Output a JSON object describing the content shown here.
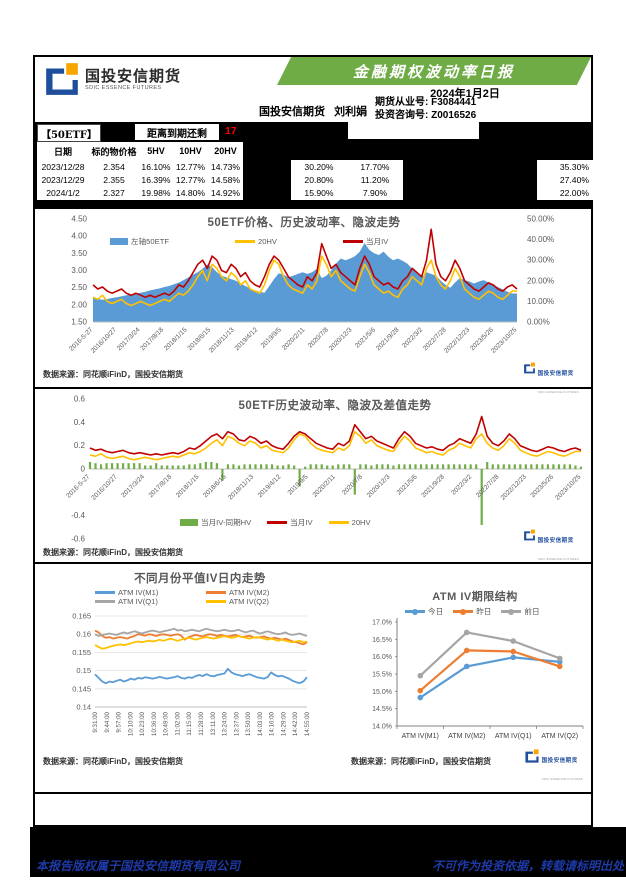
{
  "brand": {
    "name": "国投安信期货",
    "sub": "SDIC ESSENCE FUTURES"
  },
  "header": {
    "banner_title": "金融期权波动率日报",
    "date": "2024年1月2日",
    "company": "国投安信期货",
    "analyst": "刘利娟",
    "license1": "期货从业号: F3084441",
    "license2": "投资咨询号: Z0016526"
  },
  "info_bar": {
    "instrument": "【50ETF】",
    "expiry_label": "距离到期还剩",
    "days": "17"
  },
  "table": {
    "headers": [
      "日期",
      "标的物价格",
      "5HV",
      "10HV",
      "20HV"
    ],
    "rows": [
      [
        "2023/12/28",
        "2.354",
        "16.10%",
        "12.77%",
        "14.73%"
      ],
      [
        "2023/12/29",
        "2.355",
        "16.39%",
        "12.77%",
        "14.58%"
      ],
      [
        "2024/1/2",
        "2.327",
        "19.98%",
        "14.80%",
        "14.92%"
      ]
    ],
    "mid_rows": [
      [
        "30.20%",
        "17.70%"
      ],
      [
        "20.80%",
        "11.20%"
      ],
      [
        "15.90%",
        "7.90%"
      ]
    ],
    "right_col": [
      "35.30%",
      "27.40%",
      "22.00%"
    ]
  },
  "sources": {
    "text": "数据来源：同花顺iFinD，国投安信期货"
  },
  "footer": {
    "left": "本报告版权属于国投安信期货有限公司",
    "right": "不可作为投资依据，转载请标明出处"
  },
  "chart_data": [
    {
      "type": "area",
      "title": "50ETF价格、历史波动率、隐波走势",
      "left_ticks": [
        "4.50",
        "4.00",
        "3.50",
        "3.00",
        "2.50",
        "2.00",
        "1.50"
      ],
      "right_ticks": [
        "50.00%",
        "40.00%",
        "30.00%",
        "20.00%",
        "10.00%",
        "0.00%"
      ],
      "left_range": [
        1.5,
        4.5
      ],
      "right_range": [
        0,
        50
      ],
      "x_labels": [
        "2016-5-27",
        "2016/10/27",
        "2017/3/24",
        "2017/8/18",
        "2018/1/15",
        "2018/6/15",
        "2018/11/13",
        "2019/4/12",
        "2019/9/5",
        "2020/2/11",
        "2020/7/8",
        "2020/12/3",
        "2021/5/6",
        "2021/9/28",
        "2022/3/2",
        "2022/7/28",
        "2022/12/23",
        "2023/5/26",
        "2023/10/25"
      ],
      "series": [
        {
          "name": "左轴50ETF",
          "axis": "left",
          "kind": "area",
          "color": "#5B9BD5",
          "values": [
            2.2,
            2.18,
            2.15,
            2.17,
            2.2,
            2.22,
            2.25,
            2.28,
            2.3,
            2.33,
            2.35,
            2.38,
            2.42,
            2.45,
            2.48,
            2.52,
            2.55,
            2.6,
            2.65,
            2.72,
            2.8,
            2.88,
            2.95,
            3.05,
            3.18,
            3.1,
            2.95,
            2.85,
            2.8,
            2.75,
            2.7,
            2.62,
            2.55,
            2.48,
            2.42,
            2.38,
            2.35,
            2.55,
            2.75,
            2.92,
            2.88,
            2.8,
            2.85,
            2.9,
            2.95,
            2.9,
            2.95,
            3.05,
            2.78,
            2.85,
            3.0,
            3.2,
            3.35,
            3.3,
            3.35,
            3.42,
            3.55,
            3.8,
            3.6,
            3.5,
            3.45,
            3.55,
            3.4,
            3.3,
            3.35,
            3.28,
            3.2,
            3.05,
            2.9,
            2.8,
            2.95,
            2.9,
            2.85,
            2.7,
            2.58,
            2.5,
            2.65,
            2.78,
            2.72,
            2.68,
            2.62,
            2.68,
            2.72,
            2.65,
            2.58,
            2.52,
            2.45,
            2.38,
            2.33,
            2.33
          ]
        },
        {
          "name": "20HV",
          "axis": "right",
          "kind": "line",
          "color": "#FFC000",
          "values": [
            12,
            11,
            13,
            10,
            9,
            10,
            11,
            9,
            8,
            9,
            10,
            9,
            8,
            9,
            10,
            11,
            10,
            12,
            14,
            13,
            15,
            18,
            22,
            25,
            20,
            28,
            26,
            22,
            20,
            24,
            22,
            18,
            20,
            16,
            15,
            14,
            18,
            25,
            30,
            28,
            22,
            18,
            16,
            15,
            14,
            18,
            16,
            20,
            32,
            28,
            22,
            25,
            20,
            18,
            16,
            15,
            22,
            28,
            24,
            18,
            16,
            14,
            15,
            13,
            12,
            16,
            18,
            22,
            20,
            18,
            26,
            30,
            22,
            18,
            16,
            20,
            26,
            22,
            16,
            14,
            12,
            11,
            13,
            15,
            14,
            12,
            11,
            13,
            15,
            15
          ]
        },
        {
          "name": "当月IV",
          "axis": "right",
          "kind": "line",
          "color": "#C00000",
          "values": [
            18,
            16,
            17,
            15,
            14,
            15,
            16,
            14,
            13,
            14,
            13,
            12,
            13,
            12,
            13,
            14,
            13,
            15,
            18,
            17,
            20,
            24,
            28,
            30,
            26,
            32,
            30,
            25,
            24,
            28,
            26,
            22,
            24,
            20,
            18,
            17,
            22,
            28,
            32,
            30,
            26,
            22,
            20,
            18,
            17,
            22,
            20,
            24,
            38,
            32,
            26,
            28,
            24,
            22,
            20,
            18,
            26,
            32,
            28,
            22,
            20,
            18,
            19,
            17,
            16,
            20,
            22,
            26,
            24,
            22,
            30,
            45,
            28,
            22,
            20,
            24,
            30,
            26,
            20,
            18,
            16,
            15,
            17,
            19,
            18,
            16,
            15,
            17,
            18,
            16
          ]
        }
      ]
    },
    {
      "type": "bar",
      "title": "50ETF历史波动率、隐波及差值走势",
      "y_ticks_upper": [
        "0.6",
        "0.4",
        "0.2",
        "0"
      ],
      "y_ticks_lower": [
        "-0.4",
        "-0.6"
      ],
      "y_range": [
        -0.6,
        0.6
      ],
      "x_labels": [
        "2016-5-27",
        "2016/10/27",
        "2017/3/24",
        "2017/8/18",
        "2018/1/15",
        "2018/6/15",
        "2018/11/13",
        "2019/4/12",
        "2019/9/5",
        "2020/2/11",
        "2020/7/8",
        "2020/12/3",
        "2021/5/6",
        "2021/9/28",
        "2022/3/2",
        "2022/7/28",
        "2022/12/23",
        "2023/5/26",
        "2023/10/25"
      ],
      "series": [
        {
          "name": "当月IV-同期HV",
          "kind": "bar",
          "color": "#70AD47",
          "scale": 1,
          "values": [
            0.06,
            0.05,
            0.04,
            0.05,
            0.05,
            0.05,
            0.05,
            0.05,
            0.05,
            0.05,
            0.03,
            0.03,
            0.05,
            0.03,
            0.03,
            0.03,
            0.03,
            0.03,
            0.04,
            0.04,
            0.05,
            0.06,
            0.06,
            0.05,
            -0.1,
            0.04,
            0.04,
            0.03,
            0.04,
            0.04,
            0.04,
            0.04,
            0.04,
            0.04,
            0.03,
            0.03,
            0.04,
            0.03,
            -0.15,
            0.02,
            0.04,
            0.04,
            0.04,
            0.03,
            0.03,
            0.04,
            0.04,
            0.04,
            -0.22,
            0.04,
            0.04,
            0.03,
            0.04,
            0.04,
            0.04,
            0.03,
            0.04,
            0.04,
            0.04,
            0.04,
            0.04,
            0.04,
            0.04,
            0.04,
            0.04,
            0.04,
            0.04,
            0.04,
            0.04,
            0.04,
            0.04,
            -0.48,
            0.06,
            0.04,
            0.04,
            0.04,
            0.04,
            0.04,
            0.04,
            0.04,
            0.04,
            0.04,
            0.04,
            0.04,
            0.04,
            0.04,
            0.04,
            0.04,
            0.03,
            0.02
          ]
        },
        {
          "name": "当月IV",
          "kind": "line",
          "color": "#C00000",
          "scale": 0.01,
          "values": [
            18,
            16,
            17,
            15,
            14,
            15,
            16,
            14,
            13,
            14,
            13,
            12,
            13,
            12,
            13,
            14,
            13,
            15,
            18,
            17,
            20,
            24,
            28,
            30,
            26,
            32,
            30,
            25,
            24,
            28,
            26,
            22,
            24,
            20,
            18,
            17,
            22,
            28,
            32,
            30,
            26,
            22,
            20,
            18,
            17,
            22,
            20,
            24,
            38,
            32,
            26,
            28,
            24,
            22,
            20,
            18,
            26,
            32,
            28,
            22,
            20,
            18,
            19,
            17,
            16,
            20,
            22,
            26,
            24,
            22,
            30,
            45,
            28,
            22,
            20,
            24,
            30,
            26,
            20,
            18,
            16,
            15,
            17,
            19,
            18,
            16,
            15,
            17,
            18,
            16
          ]
        },
        {
          "name": "20HV",
          "kind": "line",
          "color": "#FFC000",
          "scale": 0.01,
          "values": [
            12,
            11,
            13,
            10,
            9,
            10,
            11,
            9,
            8,
            9,
            10,
            9,
            8,
            9,
            10,
            11,
            10,
            12,
            14,
            13,
            15,
            18,
            22,
            25,
            20,
            28,
            26,
            22,
            20,
            24,
            22,
            18,
            20,
            16,
            15,
            14,
            18,
            25,
            30,
            28,
            22,
            18,
            16,
            15,
            14,
            18,
            16,
            20,
            32,
            28,
            22,
            25,
            20,
            18,
            16,
            15,
            22,
            28,
            24,
            18,
            16,
            14,
            15,
            13,
            12,
            16,
            18,
            22,
            20,
            18,
            26,
            30,
            22,
            18,
            16,
            20,
            26,
            22,
            16,
            14,
            12,
            11,
            13,
            15,
            14,
            12,
            11,
            13,
            15,
            15
          ]
        }
      ]
    },
    {
      "type": "line",
      "title": "不同月份平值IV日内走势",
      "y_ticks": [
        "0.165",
        "0.16",
        "0.155",
        "0.15",
        "0.145",
        "0.14"
      ],
      "y_range": [
        0.14,
        0.165
      ],
      "x_labels": [
        "9:31:00",
        "9:44:00",
        "9:57:00",
        "10:10:00",
        "10:23:00",
        "10:36:00",
        "10:49:00",
        "11:02:00",
        "11:15:00",
        "11:28:00",
        "13:11:00",
        "13:24:00",
        "13:37:00",
        "13:50:00",
        "14:03:00",
        "14:16:00",
        "14:29:00",
        "14:42:00",
        "14:55:00"
      ],
      "series": [
        {
          "name": "ATM IV(M1)",
          "color": "#5B9BD5",
          "values": [
            0.149,
            0.148,
            0.147,
            0.1465,
            0.147,
            0.1468,
            0.1472,
            0.1475,
            0.147,
            0.1473,
            0.1478,
            0.1475,
            0.148,
            0.1478,
            0.1482,
            0.148,
            0.1478,
            0.148,
            0.1483,
            0.148,
            0.1478,
            0.148,
            0.1482,
            0.1485,
            0.148,
            0.1478,
            0.1482,
            0.148,
            0.1485,
            0.1488,
            0.1485,
            0.149,
            0.1486,
            0.1484,
            0.1488,
            0.149,
            0.1492,
            0.1505,
            0.1495,
            0.149,
            0.1488,
            0.1485,
            0.1488,
            0.149,
            0.1486,
            0.1482,
            0.148,
            0.1478,
            0.1482,
            0.1495,
            0.1488,
            0.1484,
            0.1486,
            0.1482,
            0.1478,
            0.1472,
            0.1468,
            0.1466,
            0.147,
            0.1482
          ]
        },
        {
          "name": "ATM IV(M2)",
          "color": "#ED7D31",
          "values": [
            0.161,
            0.1605,
            0.1595,
            0.159,
            0.1592,
            0.1588,
            0.159,
            0.1592,
            0.159,
            0.1588,
            0.1592,
            0.1595,
            0.16,
            0.1598,
            0.1596,
            0.16,
            0.1598,
            0.1595,
            0.1598,
            0.16,
            0.1598,
            0.1596,
            0.1598,
            0.16,
            0.1596,
            0.1585,
            0.1592,
            0.1595,
            0.1598,
            0.1596,
            0.1594,
            0.1598,
            0.16,
            0.1598,
            0.1595,
            0.1598,
            0.1596,
            0.1594,
            0.1596,
            0.1598,
            0.1595,
            0.1592,
            0.1594,
            0.1596,
            0.1592,
            0.159,
            0.1592,
            0.1594,
            0.159,
            0.1588,
            0.159,
            0.1588,
            0.1585,
            0.1588,
            0.1584,
            0.158,
            0.1578,
            0.1575,
            0.1572,
            0.1578
          ]
        },
        {
          "name": "ATM IV(Q1)",
          "color": "#A5A5A5",
          "values": [
            0.16,
            0.1595,
            0.1598,
            0.16,
            0.1602,
            0.16,
            0.1598,
            0.1602,
            0.1605,
            0.1602,
            0.1605,
            0.1608,
            0.1605,
            0.1602,
            0.1605,
            0.1608,
            0.161,
            0.1608,
            0.1605,
            0.1608,
            0.161,
            0.1612,
            0.1615,
            0.161,
            0.1612,
            0.1608,
            0.161,
            0.1612,
            0.161,
            0.1608,
            0.1612,
            0.1615,
            0.1612,
            0.161,
            0.1608,
            0.161,
            0.1612,
            0.161,
            0.1608,
            0.161,
            0.1612,
            0.1608,
            0.1605,
            0.1608,
            0.161,
            0.1605,
            0.1602,
            0.1605,
            0.1608,
            0.1605,
            0.1602,
            0.16,
            0.1602,
            0.1605,
            0.16,
            0.1598,
            0.16,
            0.1602,
            0.1598,
            0.1595
          ]
        },
        {
          "name": "ATM IV(Q2)",
          "color": "#FFC000",
          "values": [
            0.157,
            0.1565,
            0.156,
            0.1562,
            0.1565,
            0.1568,
            0.157,
            0.1572,
            0.157,
            0.1572,
            0.1575,
            0.1578,
            0.158,
            0.1578,
            0.158,
            0.1582,
            0.158,
            0.1582,
            0.1585,
            0.1582,
            0.1585,
            0.1588,
            0.1585,
            0.1582,
            0.1585,
            0.1588,
            0.159,
            0.1588,
            0.1585,
            0.1588,
            0.159,
            0.1592,
            0.159,
            0.1588,
            0.159,
            0.1592,
            0.1595,
            0.1592,
            0.159,
            0.1592,
            0.1595,
            0.1592,
            0.159,
            0.1588,
            0.159,
            0.1592,
            0.159,
            0.1588,
            0.1585,
            0.1588,
            0.1585,
            0.1582,
            0.1585,
            0.1582,
            0.158,
            0.1578,
            0.158,
            0.1582,
            0.1578,
            0.158
          ]
        }
      ]
    },
    {
      "type": "line",
      "title": "ATM IV期限结构",
      "y_ticks": [
        "17.0%",
        "16.5%",
        "16.0%",
        "15.5%",
        "15.0%",
        "14.5%",
        "14.0%"
      ],
      "y_range": [
        14,
        17
      ],
      "categories": [
        "ATM IV(M1)",
        "ATM IV(M2)",
        "ATM IV(Q1)",
        "ATM IV(Q2)"
      ],
      "series": [
        {
          "name": "今日",
          "color": "#5B9BD5",
          "values": [
            14.82,
            15.72,
            15.98,
            15.85
          ]
        },
        {
          "name": "昨日",
          "color": "#ED7D31",
          "values": [
            15.02,
            16.18,
            16.15,
            15.72
          ]
        },
        {
          "name": "前日",
          "color": "#A5A5A5",
          "values": [
            15.45,
            16.7,
            16.45,
            15.95
          ]
        }
      ]
    }
  ]
}
